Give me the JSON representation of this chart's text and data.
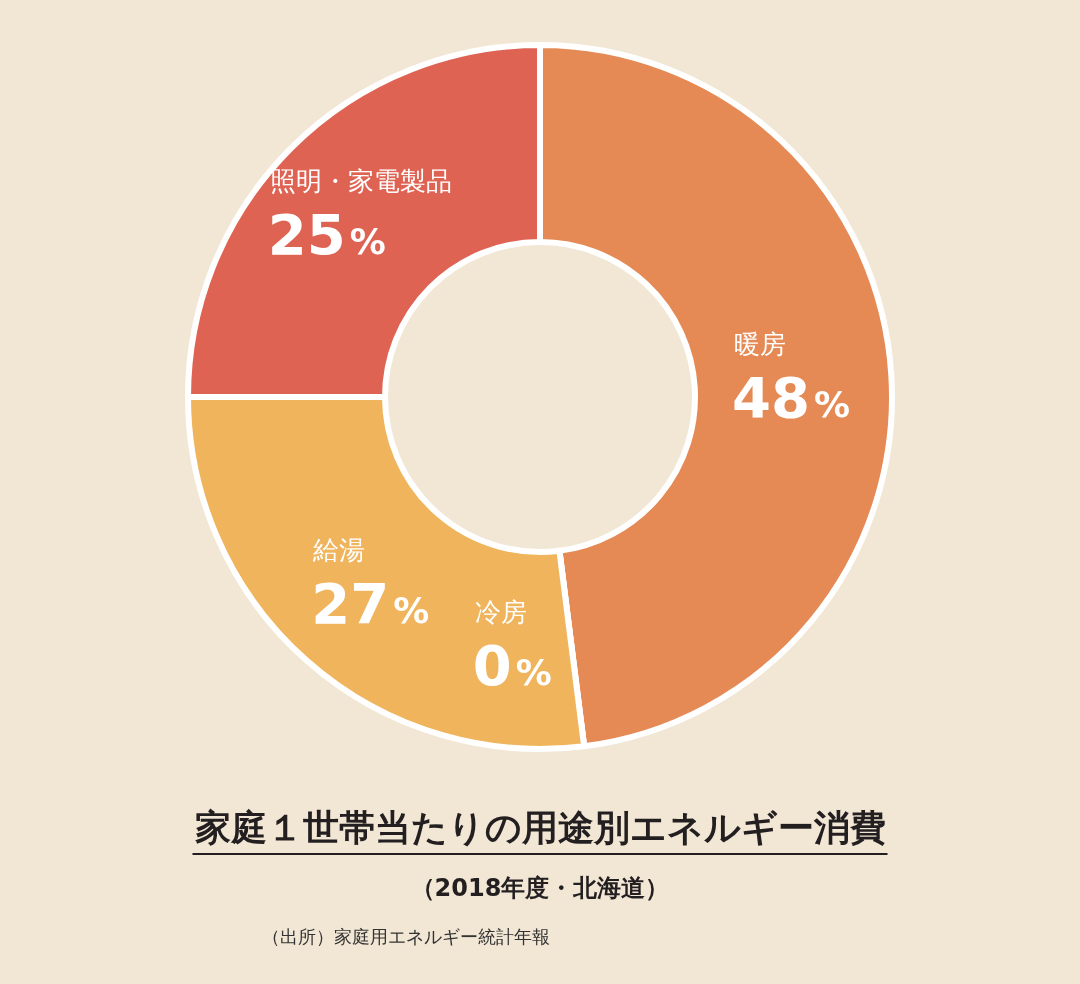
{
  "chart_data": {
    "type": "donut",
    "title": "家庭１世帯当たりの用途別エネルギー消費",
    "subtitle": "（2018年度・北海道）",
    "annotations": [
      "（出所）家庭用エネルギー統計年報"
    ],
    "categories": [
      "暖房",
      "冷房",
      "給湯",
      "照明・家電製品"
    ],
    "values": [
      48,
      0,
      27,
      25
    ],
    "value_labels": [
      "48%",
      "0%",
      "27%",
      "25%"
    ],
    "colors": [
      "#e58a55",
      "#efb45c",
      "#efb45c",
      "#df6353"
    ]
  }
}
